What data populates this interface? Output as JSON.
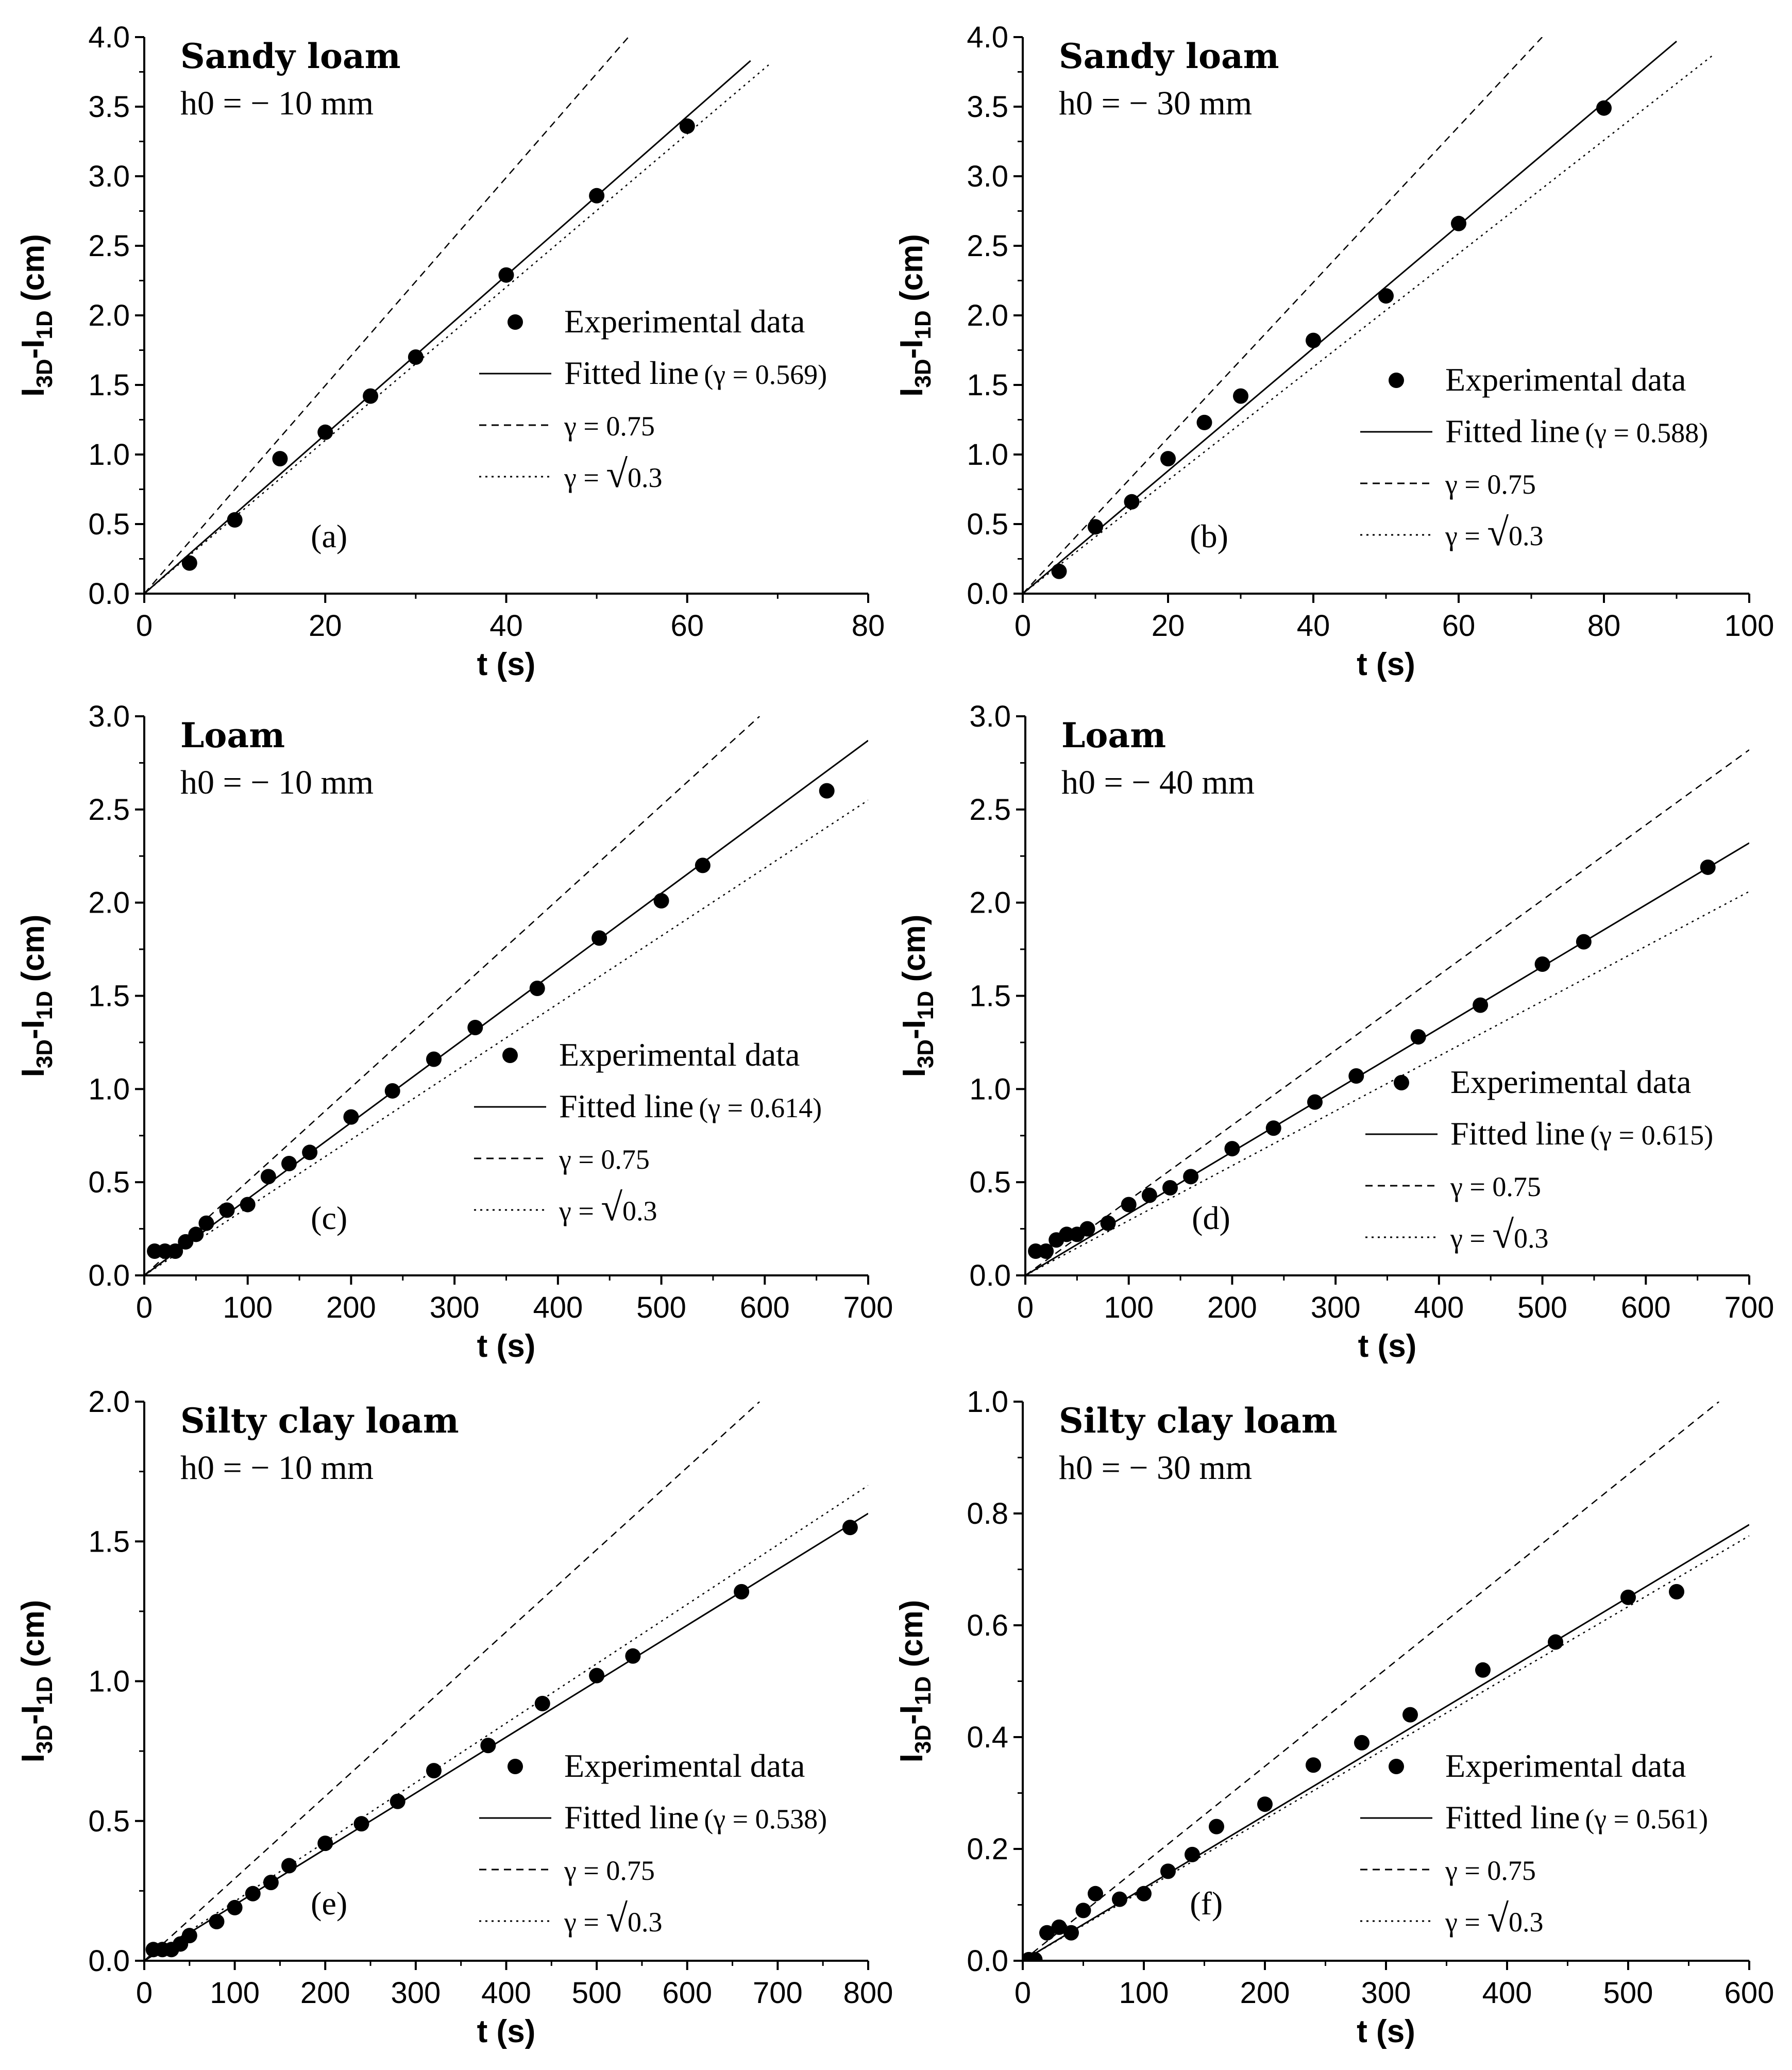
{
  "figure": {
    "background": "#ffffff",
    "ink": "#000000"
  },
  "chart_data": [
    {
      "id": "a",
      "type": "scatter",
      "title": "Sandy loam",
      "subtitle": "h0 = − 10 mm",
      "panel_label": "(a)",
      "xlabel": "t (s)",
      "ylabel": "I3D-I1D (cm)",
      "xlim": [
        0,
        80
      ],
      "ylim": [
        0,
        4.0
      ],
      "xticks": [
        0,
        20,
        40,
        60,
        80
      ],
      "yticks": [
        0,
        0.5,
        1.0,
        1.5,
        2.0,
        2.5,
        3.0,
        3.5,
        4.0
      ],
      "xtick_labels": [
        "0",
        "20",
        "40",
        "60",
        "80"
      ],
      "ytick_labels": [
        "0.0",
        "0.5",
        "1.0",
        "1.5",
        "2.0",
        "2.5",
        "3.0",
        "3.5",
        "4.0"
      ],
      "legend_position": "right",
      "series": [
        {
          "name": "Experimental data",
          "kind": "points",
          "x": [
            5,
            10,
            15,
            20,
            25,
            30,
            40,
            50,
            60
          ],
          "y": [
            0.22,
            0.53,
            0.97,
            1.16,
            1.42,
            1.7,
            2.29,
            2.86,
            3.36
          ]
        },
        {
          "name": "Fitted line",
          "gamma_label": "(γ = 0.569)",
          "kind": "line",
          "style": "solid",
          "x": [
            0,
            67
          ],
          "y": [
            0,
            3.83
          ]
        },
        {
          "name": "γ = 0.75",
          "kind": "line",
          "style": "dashed",
          "x": [
            0,
            53.5
          ],
          "y": [
            0,
            4.0
          ]
        },
        {
          "name": "γ = √0.3",
          "kind": "line",
          "style": "dotted",
          "x": [
            0,
            69
          ],
          "y": [
            0,
            3.8
          ]
        }
      ]
    },
    {
      "id": "b",
      "type": "scatter",
      "title": "Sandy loam",
      "subtitle": "h0 = − 30 mm",
      "panel_label": "(b)",
      "xlabel": "t (s)",
      "ylabel": "I3D-I1D (cm)",
      "xlim": [
        0,
        100
      ],
      "ylim": [
        0,
        4.0
      ],
      "xticks": [
        0,
        20,
        40,
        60,
        80,
        100
      ],
      "yticks": [
        0,
        0.5,
        1.0,
        1.5,
        2.0,
        2.5,
        3.0,
        3.5,
        4.0
      ],
      "xtick_labels": [
        "0",
        "20",
        "40",
        "60",
        "80",
        "100"
      ],
      "ytick_labels": [
        "0.0",
        "0.5",
        "1.0",
        "1.5",
        "2.0",
        "2.5",
        "3.0",
        "3.5",
        "4.0"
      ],
      "legend_position": "right",
      "series": [
        {
          "name": "Experimental data",
          "kind": "points",
          "x": [
            5,
            10,
            15,
            20,
            25,
            30,
            40,
            50,
            60,
            80
          ],
          "y": [
            0.16,
            0.48,
            0.66,
            0.97,
            1.23,
            1.42,
            1.82,
            2.14,
            2.66,
            3.49
          ]
        },
        {
          "name": "Fitted line",
          "gamma_label": "(γ = 0.588)",
          "kind": "line",
          "style": "solid",
          "x": [
            0,
            90
          ],
          "y": [
            0,
            3.97
          ]
        },
        {
          "name": "γ = 0.75",
          "kind": "line",
          "style": "dashed",
          "x": [
            0,
            71.5
          ],
          "y": [
            0,
            4.0
          ]
        },
        {
          "name": "γ = √0.3",
          "kind": "line",
          "style": "dotted",
          "x": [
            0,
            95
          ],
          "y": [
            0,
            3.87
          ]
        }
      ]
    },
    {
      "id": "c",
      "type": "scatter",
      "title": "Loam",
      "subtitle": "h0 = − 10 mm",
      "panel_label": "(c)",
      "xlabel": "t (s)",
      "ylabel": "I3D-I1D (cm)",
      "xlim": [
        0,
        700
      ],
      "ylim": [
        0,
        3.0
      ],
      "xticks": [
        0,
        100,
        200,
        300,
        400,
        500,
        600,
        700
      ],
      "yticks": [
        0,
        0.5,
        1.0,
        1.5,
        2.0,
        2.5,
        3.0
      ],
      "xtick_labels": [
        "0",
        "100",
        "200",
        "300",
        "400",
        "500",
        "600",
        "700"
      ],
      "ytick_labels": [
        "0.0",
        "0.5",
        "1.0",
        "1.5",
        "2.0",
        "2.5",
        "3.0"
      ],
      "legend_position": "right",
      "series": [
        {
          "name": "Experimental data",
          "kind": "points",
          "x": [
            10,
            20,
            30,
            40,
            50,
            60,
            80,
            100,
            120,
            140,
            160,
            200,
            240,
            280,
            320,
            380,
            440,
            500,
            540,
            660
          ],
          "y": [
            0.13,
            0.13,
            0.13,
            0.18,
            0.22,
            0.28,
            0.35,
            0.38,
            0.53,
            0.6,
            0.66,
            0.85,
            0.99,
            1.16,
            1.33,
            1.54,
            1.81,
            2.01,
            2.2,
            2.6
          ]
        },
        {
          "name": "Fitted line",
          "gamma_label": "(γ = 0.614)",
          "kind": "line",
          "style": "solid",
          "x": [
            0,
            700
          ],
          "y": [
            0,
            2.87
          ]
        },
        {
          "name": "γ = 0.75",
          "kind": "line",
          "style": "dashed",
          "x": [
            0,
            595
          ],
          "y": [
            0,
            3.0
          ]
        },
        {
          "name": "γ = √0.3",
          "kind": "line",
          "style": "dotted",
          "x": [
            0,
            700
          ],
          "y": [
            0,
            2.55
          ]
        }
      ]
    },
    {
      "id": "d",
      "type": "scatter",
      "title": "Loam",
      "subtitle": "h0 = − 40 mm",
      "panel_label": "(d)",
      "xlabel": "t (s)",
      "ylabel": "I3D-I1D (cm)",
      "xlim": [
        0,
        700
      ],
      "ylim": [
        0,
        3.0
      ],
      "xticks": [
        0,
        100,
        200,
        300,
        400,
        500,
        600,
        700
      ],
      "yticks": [
        0,
        0.5,
        1.0,
        1.5,
        2.0,
        2.5,
        3.0
      ],
      "xtick_labels": [
        "0",
        "100",
        "200",
        "300",
        "400",
        "500",
        "600",
        "700"
      ],
      "ytick_labels": [
        "0.0",
        "0.5",
        "1.0",
        "1.5",
        "2.0",
        "2.5",
        "3.0"
      ],
      "legend_position": "right",
      "series": [
        {
          "name": "Experimental data",
          "kind": "points",
          "x": [
            10,
            20,
            30,
            40,
            50,
            60,
            80,
            100,
            120,
            140,
            160,
            200,
            240,
            280,
            320,
            380,
            440,
            500,
            540,
            660
          ],
          "y": [
            0.13,
            0.13,
            0.19,
            0.22,
            0.22,
            0.25,
            0.28,
            0.38,
            0.43,
            0.47,
            0.53,
            0.68,
            0.79,
            0.93,
            1.07,
            1.28,
            1.45,
            1.67,
            1.79,
            2.19
          ]
        },
        {
          "name": "Fitted line",
          "gamma_label": "(γ = 0.615)",
          "kind": "line",
          "style": "solid",
          "x": [
            0,
            700
          ],
          "y": [
            0,
            2.32
          ]
        },
        {
          "name": "γ = 0.75",
          "kind": "line",
          "style": "dashed",
          "x": [
            0,
            700
          ],
          "y": [
            0,
            2.82
          ]
        },
        {
          "name": "γ = √0.3",
          "kind": "line",
          "style": "dotted",
          "x": [
            0,
            700
          ],
          "y": [
            0,
            2.06
          ]
        }
      ]
    },
    {
      "id": "e",
      "type": "scatter",
      "title": "Silty clay loam",
      "subtitle": "h0 = − 10 mm",
      "panel_label": "(e)",
      "xlabel": "t (s)",
      "ylabel": "I3D-I1D (cm)",
      "xlim": [
        0,
        800
      ],
      "ylim": [
        0,
        2.0
      ],
      "xticks": [
        0,
        100,
        200,
        300,
        400,
        500,
        600,
        700,
        800
      ],
      "yticks": [
        0,
        0.5,
        1.0,
        1.5,
        2.0
      ],
      "xtick_labels": [
        "0",
        "100",
        "200",
        "300",
        "400",
        "500",
        "600",
        "700",
        "800"
      ],
      "ytick_labels": [
        "0.0",
        "0.5",
        "1.0",
        "1.5",
        "2.0"
      ],
      "legend_position": "right",
      "series": [
        {
          "name": "Experimental data",
          "kind": "points",
          "x": [
            10,
            20,
            30,
            40,
            50,
            80,
            100,
            120,
            140,
            160,
            200,
            240,
            280,
            320,
            380,
            440,
            500,
            540,
            660,
            780
          ],
          "y": [
            0.04,
            0.04,
            0.04,
            0.06,
            0.09,
            0.14,
            0.19,
            0.24,
            0.28,
            0.34,
            0.42,
            0.49,
            0.57,
            0.68,
            0.77,
            0.92,
            1.02,
            1.09,
            1.32,
            1.55
          ]
        },
        {
          "name": "Fitted line",
          "gamma_label": "(γ = 0.538)",
          "kind": "line",
          "style": "solid",
          "x": [
            0,
            800
          ],
          "y": [
            0,
            1.6
          ]
        },
        {
          "name": "γ = 0.75",
          "kind": "line",
          "style": "dashed",
          "x": [
            0,
            680
          ],
          "y": [
            0,
            2.0
          ]
        },
        {
          "name": "γ = √0.3",
          "kind": "line",
          "style": "dotted",
          "x": [
            0,
            800
          ],
          "y": [
            0,
            1.7
          ]
        }
      ]
    },
    {
      "id": "f",
      "type": "scatter",
      "title": "Silty clay loam",
      "subtitle": "h0 = − 30 mm",
      "panel_label": "(f)",
      "xlabel": "t (s)",
      "ylabel": "I3D-I1D (cm)",
      "xlim": [
        0,
        600
      ],
      "ylim": [
        0,
        1.0
      ],
      "xticks": [
        0,
        100,
        200,
        300,
        400,
        500,
        600
      ],
      "yticks": [
        0,
        0.2,
        0.4,
        0.6,
        0.8,
        1.0
      ],
      "xtick_labels": [
        "0",
        "100",
        "200",
        "300",
        "400",
        "500",
        "600"
      ],
      "ytick_labels": [
        "0.0",
        "0.2",
        "0.4",
        "0.6",
        "0.8",
        "1.0"
      ],
      "legend_position": "right",
      "series": [
        {
          "name": "Experimental data",
          "kind": "points",
          "x": [
            5,
            10,
            20,
            30,
            40,
            50,
            60,
            80,
            100,
            120,
            140,
            160,
            200,
            240,
            280,
            320,
            380,
            440,
            500,
            540
          ],
          "y": [
            0.002,
            0.002,
            0.05,
            0.06,
            0.05,
            0.09,
            0.12,
            0.11,
            0.12,
            0.16,
            0.19,
            0.24,
            0.28,
            0.35,
            0.39,
            0.44,
            0.52,
            0.57,
            0.65,
            0.66
          ]
        },
        {
          "name": "Fitted line",
          "gamma_label": "(γ = 0.561)",
          "kind": "line",
          "style": "solid",
          "x": [
            0,
            600
          ],
          "y": [
            0,
            0.78
          ]
        },
        {
          "name": "γ = 0.75",
          "kind": "line",
          "style": "dashed",
          "x": [
            0,
            575
          ],
          "y": [
            0,
            1.0
          ]
        },
        {
          "name": "γ = √0.3",
          "kind": "line",
          "style": "dotted",
          "x": [
            0,
            600
          ],
          "y": [
            0,
            0.76
          ]
        }
      ]
    }
  ]
}
